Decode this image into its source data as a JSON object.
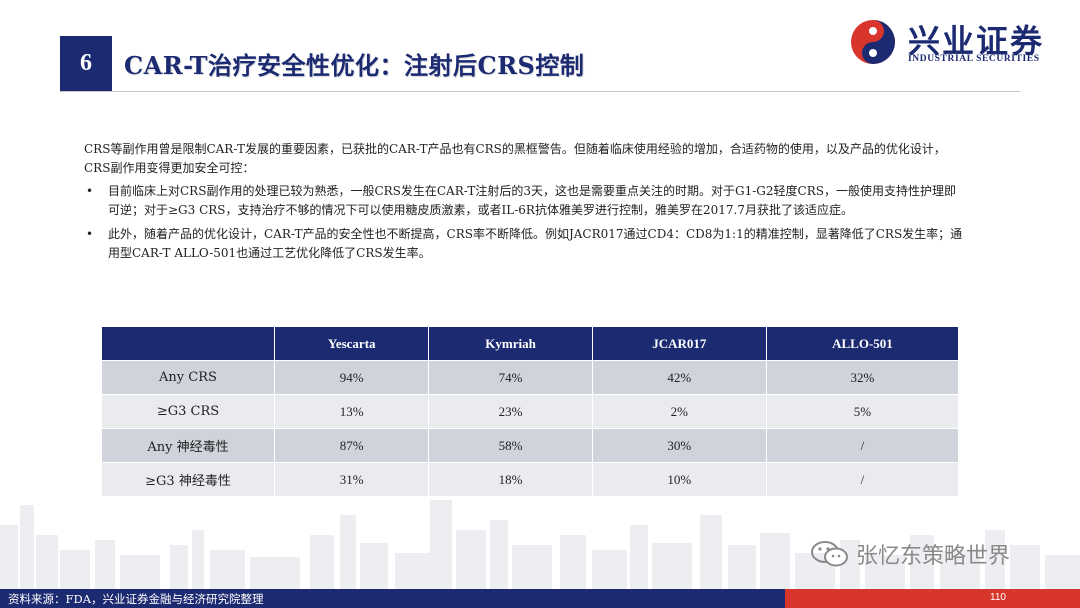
{
  "header": {
    "section_number": "6",
    "title": "CAR-T治疗安全性优化：注射后CRS控制"
  },
  "logo": {
    "name_cn": "兴业证券",
    "name_en": "INDUSTRIAL SECURITIES",
    "colors": {
      "navy": "#1c2a72",
      "red": "#d8362d"
    }
  },
  "body": {
    "intro": "CRS等副作用曾是限制CAR-T发展的重要因素，已获批的CAR-T产品也有CRS的黑框警告。但随着临床使用经验的增加，合适药物的使用，以及产品的优化设计，CRS副作用变得更加安全可控：",
    "bullets": [
      "目前临床上对CRS副作用的处理已较为熟悉，一般CRS发生在CAR-T注射后的3天，这也是需要重点关注的时期。对于G1-G2轻度CRS，一般使用支持性护理即可逆；对于≥G3 CRS，支持治疗不够的情况下可以使用糖皮质激素，或者IL-6R抗体雅美罗进行控制，雅美罗在2017.7月获批了该适应症。",
      "此外，随着产品的优化设计，CAR-T产品的安全性也不断提高，CRS率不断降低。例如JACR017通过CD4：CD8为1:1的精准控制，显著降低了CRS发生率；通用型CAR-T ALLO-501也通过工艺优化降低了CRS发生率。"
    ]
  },
  "table": {
    "columns": [
      "",
      "Yescarta",
      "Kymriah",
      "JCAR017",
      "ALLO-501"
    ],
    "rows": [
      {
        "label": "Any CRS",
        "values": [
          "94%",
          "74%",
          "42%",
          "32%"
        ]
      },
      {
        "label": "≥G3 CRS",
        "values": [
          "13%",
          "23%",
          "2%",
          "5%"
        ]
      },
      {
        "label": "Any 神经毒性",
        "values": [
          "87%",
          "58%",
          "30%",
          "/"
        ]
      },
      {
        "label": "≥G3 神经毒性",
        "values": [
          "31%",
          "18%",
          "10%",
          "/"
        ]
      }
    ]
  },
  "watermark": {
    "text": "张忆东策略世界",
    "icon": "wechat-icon"
  },
  "footer": {
    "source": "资料来源：FDA，兴业证券金融与经济研究院整理",
    "page": "110"
  }
}
